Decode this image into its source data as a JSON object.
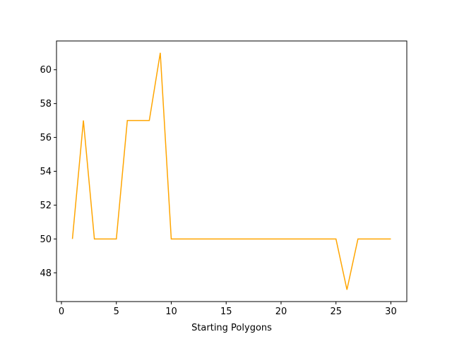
{
  "chart_data": {
    "type": "line",
    "title": "",
    "xlabel": "Starting Polygons",
    "ylabel": "",
    "xlim": [
      -0.45,
      31.45
    ],
    "ylim": [
      46.3,
      61.7
    ],
    "xticks": [
      0,
      5,
      10,
      15,
      20,
      25,
      30
    ],
    "yticks": [
      48,
      50,
      52,
      54,
      56,
      58,
      60
    ],
    "grid": false,
    "legend": "none",
    "series": [
      {
        "color": "#FFA500",
        "x": [
          1,
          2,
          3,
          4,
          5,
          6,
          7,
          8,
          9,
          10,
          11,
          12,
          13,
          14,
          15,
          16,
          17,
          18,
          19,
          20,
          21,
          22,
          23,
          24,
          25,
          26,
          27,
          28,
          29,
          30
        ],
        "y": [
          50,
          57,
          50,
          50,
          50,
          57,
          57,
          57,
          61,
          50,
          50,
          50,
          50,
          50,
          50,
          50,
          50,
          50,
          50,
          50,
          50,
          50,
          50,
          50,
          50,
          47,
          50,
          50,
          50,
          50
        ]
      }
    ]
  }
}
